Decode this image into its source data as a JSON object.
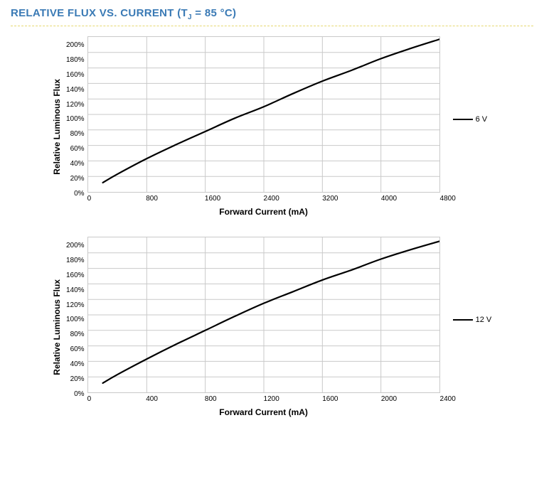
{
  "page_title": "RELATIVE FLUX VS. CURRENT (T",
  "page_title_sub": "J",
  "page_title_tail": " = 85 °C)",
  "title_color": "#3a7ab5",
  "title_fontsize": 15,
  "divider_color": "#e6d870",
  "background": "#ffffff",
  "chart_top": {
    "type": "line",
    "series_label": "6 V",
    "ylabel": "Relative Luminous Flux",
    "xlabel": "Forward Current (mA)",
    "label_fontsize": 12,
    "tick_fontsize": 10,
    "xlim": [
      0,
      4800
    ],
    "xtick_step": 800,
    "xticks": [
      "0",
      "800",
      "1600",
      "2400",
      "3200",
      "4000",
      "4800"
    ],
    "ylim": [
      0,
      200
    ],
    "ytick_step": 20,
    "yticks": [
      "200%",
      "180%",
      "160%",
      "140%",
      "120%",
      "100%",
      "80%",
      "60%",
      "40%",
      "20%",
      "0%"
    ],
    "grid_color": "#c9c9c9",
    "line_color": "#000000",
    "line_width": 2.2,
    "data": {
      "x": [
        200,
        400,
        800,
        1200,
        1600,
        2000,
        2400,
        2800,
        3200,
        3600,
        4000,
        4400,
        4800
      ],
      "y": [
        12,
        23,
        43,
        61,
        78,
        95,
        110,
        127,
        143,
        157,
        172,
        185,
        197
      ]
    }
  },
  "chart_bottom": {
    "type": "line",
    "series_label": "12 V",
    "ylabel": "Relative Luminous Flux",
    "xlabel": "Forward Current (mA)",
    "label_fontsize": 12,
    "tick_fontsize": 10,
    "xlim": [
      0,
      2400
    ],
    "xtick_step": 400,
    "xticks": [
      "0",
      "400",
      "800",
      "1200",
      "1600",
      "2000",
      "2400"
    ],
    "ylim": [
      0,
      200
    ],
    "ytick_step": 20,
    "yticks": [
      "200%",
      "180%",
      "160%",
      "140%",
      "120%",
      "100%",
      "80%",
      "60%",
      "40%",
      "20%",
      "0%"
    ],
    "grid_color": "#c9c9c9",
    "line_color": "#000000",
    "line_width": 2.2,
    "data": {
      "x": [
        100,
        200,
        400,
        600,
        800,
        1000,
        1200,
        1400,
        1600,
        1800,
        2000,
        2200,
        2400
      ],
      "y": [
        12,
        23,
        43,
        62,
        80,
        98,
        115,
        130,
        145,
        158,
        172,
        184,
        195
      ]
    }
  }
}
